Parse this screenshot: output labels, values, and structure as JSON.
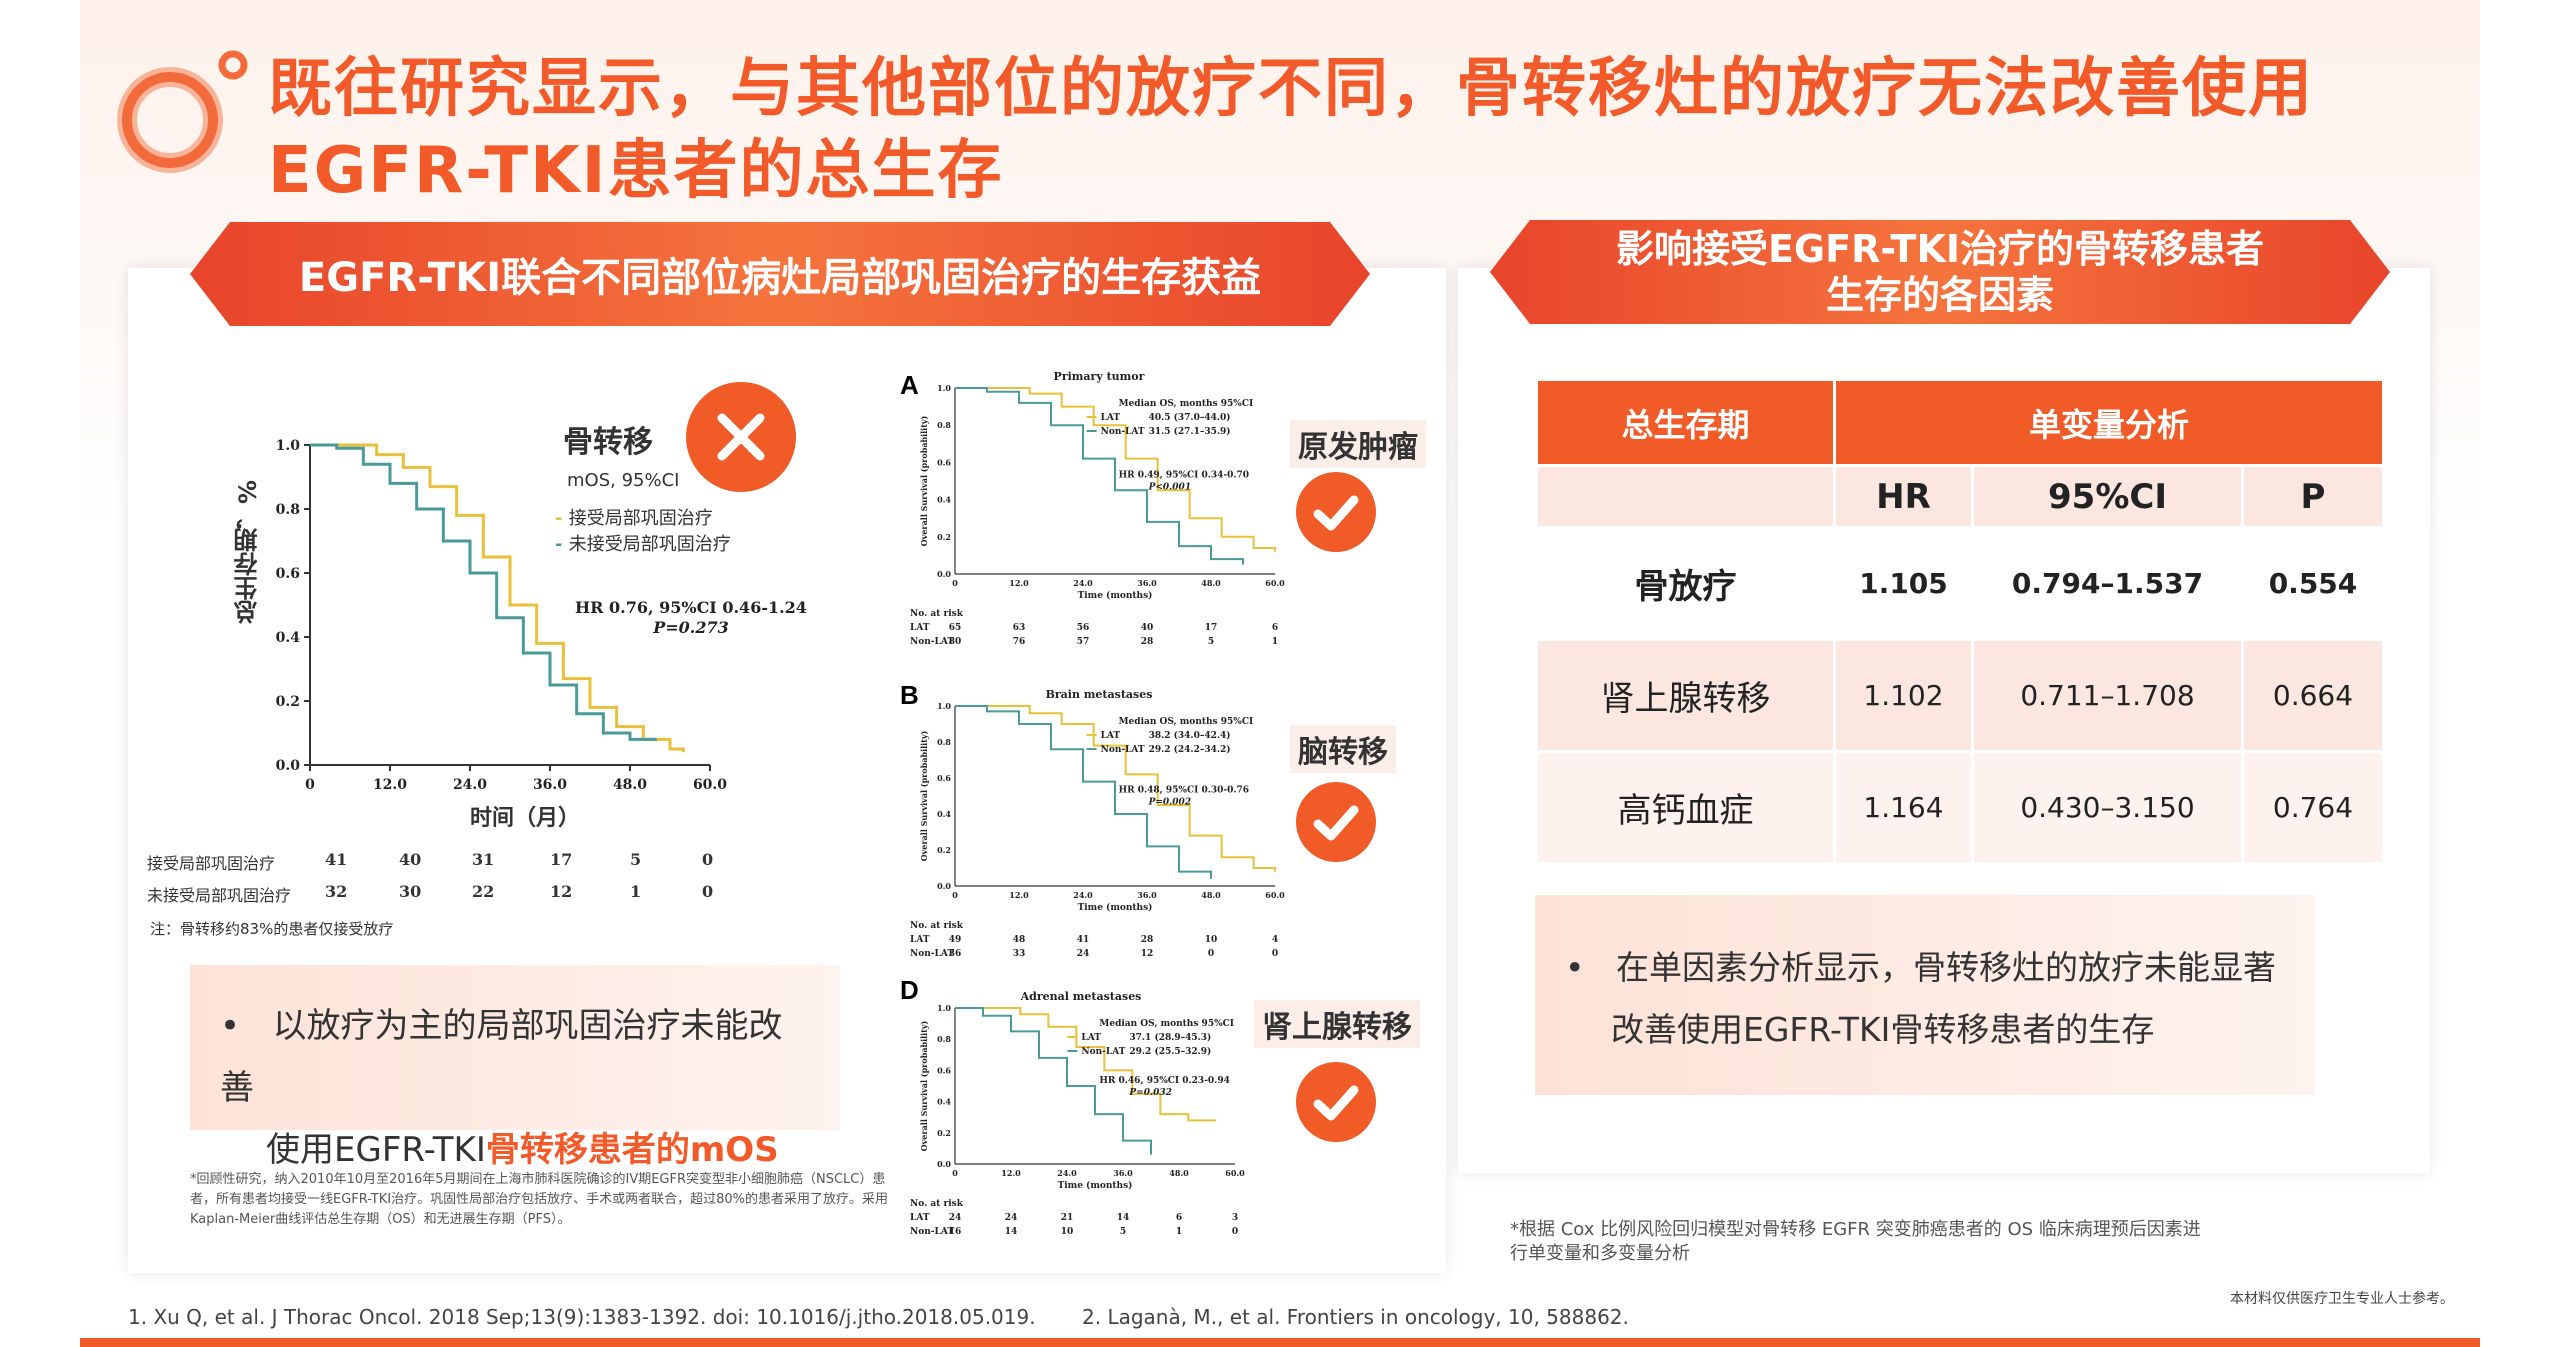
{
  "title": "既往研究显示，与其他部位的放疗不同，骨转移灶的放疗无法改善使用EGFR-TKI患者的总生存",
  "left_banner": "EGFR-TKI联合不同部位病灶局部巩固治疗的生存获益",
  "right_banner_line1": "影响接受EGFR-TKI治疗的骨转移患者",
  "right_banner_line2": "生存的各因素",
  "icons": {
    "logo": "orange-rings-logo",
    "cross": "x-mark-icon",
    "check": "check-mark-icon"
  },
  "colors": {
    "accent": "#f05b28",
    "lat": "#e8c03a",
    "non_lat": "#4a9a9a"
  },
  "left_chart": {
    "site": "骨转移",
    "mos_label": "mOS, 95%CI",
    "legend_lat": "接受局部巩固治疗",
    "legend_nonlat": "未接受局部巩固治疗",
    "hr_line1": "HR 0.76, 95%CI 0.46-1.24",
    "hr_line2": "P=0.273",
    "ylabel": "总生存期，%",
    "xlabel": "时间（月）",
    "risk_lat_label": "接受局部巩固治疗",
    "risk_nonlat_label": "未接受局部巩固治疗",
    "risk_lat": [
      "41",
      "40",
      "31",
      "17",
      "5",
      "0"
    ],
    "risk_nonlat": [
      "32",
      "30",
      "22",
      "12",
      "1",
      "0"
    ],
    "note": "注：骨转移约83%的患者仅接受放疗"
  },
  "chart_data": [
    {
      "type": "line",
      "subtitle": "骨转移",
      "xlabel": "时间（月）",
      "ylabel": "总生存期，%",
      "x_ticks": [
        "0",
        "12.0",
        "24.0",
        "36.0",
        "48.0",
        "60.0"
      ],
      "y_ticks": [
        "0.0",
        "0.2",
        "0.4",
        "0.6",
        "0.8",
        "1.0"
      ],
      "xlim": [
        0,
        60
      ],
      "ylim": [
        0,
        1
      ],
      "series": [
        {
          "name": "接受局部巩固治疗",
          "x": [
            0,
            6,
            10,
            14,
            18,
            22,
            26,
            30,
            34,
            38,
            42,
            46,
            50,
            54,
            56
          ],
          "y": [
            1.0,
            1.0,
            0.97,
            0.93,
            0.87,
            0.78,
            0.65,
            0.5,
            0.38,
            0.27,
            0.18,
            0.12,
            0.08,
            0.05,
            0.04
          ]
        },
        {
          "name": "未接受局部巩固治疗",
          "x": [
            0,
            4,
            8,
            12,
            16,
            20,
            24,
            28,
            32,
            36,
            40,
            44,
            48,
            52
          ],
          "y": [
            1.0,
            0.99,
            0.94,
            0.88,
            0.8,
            0.7,
            0.6,
            0.46,
            0.35,
            0.25,
            0.16,
            0.1,
            0.08,
            0.08
          ]
        }
      ]
    },
    {
      "type": "line",
      "title": "Primary tumor",
      "xlabel": "Time (months)",
      "ylabel": "Overall Survival (probability)",
      "x_ticks": [
        "0",
        "12.0",
        "24.0",
        "36.0",
        "48.0",
        "60.0"
      ],
      "y_ticks": [
        "0.0",
        "0.2",
        "0.4",
        "0.6",
        "0.8",
        "1.0"
      ],
      "xlim": [
        0,
        60
      ],
      "ylim": [
        0,
        1
      ],
      "series": [
        {
          "name": "LAT",
          "x": [
            0,
            8,
            14,
            20,
            26,
            32,
            38,
            44,
            50,
            56,
            60
          ],
          "y": [
            1.0,
            1.0,
            0.97,
            0.9,
            0.8,
            0.62,
            0.45,
            0.3,
            0.2,
            0.14,
            0.12
          ]
        },
        {
          "name": "Non-LAT",
          "x": [
            0,
            6,
            12,
            18,
            24,
            30,
            36,
            42,
            48,
            54
          ],
          "y": [
            1.0,
            0.98,
            0.92,
            0.8,
            0.62,
            0.45,
            0.28,
            0.15,
            0.08,
            0.05
          ]
        }
      ]
    },
    {
      "type": "line",
      "title": "Brain metastases",
      "xlabel": "Time (months)",
      "ylabel": "Overall Survival (probability)",
      "x_ticks": [
        "0",
        "12.0",
        "24.0",
        "36.0",
        "48.0",
        "60.0"
      ],
      "y_ticks": [
        "0.0",
        "0.2",
        "0.4",
        "0.6",
        "0.8",
        "1.0"
      ],
      "xlim": [
        0,
        60
      ],
      "ylim": [
        0,
        1
      ],
      "series": [
        {
          "name": "LAT",
          "x": [
            0,
            8,
            14,
            20,
            26,
            32,
            38,
            44,
            50,
            56,
            60
          ],
          "y": [
            1.0,
            1.0,
            0.96,
            0.9,
            0.78,
            0.62,
            0.45,
            0.28,
            0.16,
            0.1,
            0.08
          ]
        },
        {
          "name": "Non-LAT",
          "x": [
            0,
            6,
            12,
            18,
            24,
            30,
            36,
            42,
            48
          ],
          "y": [
            1.0,
            0.97,
            0.9,
            0.76,
            0.58,
            0.4,
            0.22,
            0.08,
            0.04
          ]
        }
      ]
    },
    {
      "type": "line",
      "title": "Adrenal metastases",
      "xlabel": "Time (months)",
      "ylabel": "Overall Survival (probability)",
      "x_ticks": [
        "0",
        "12.0",
        "24.0",
        "36.0",
        "48.0",
        "60.0"
      ],
      "y_ticks": [
        "0.0",
        "0.2",
        "0.4",
        "0.6",
        "0.8",
        "1.0"
      ],
      "xlim": [
        0,
        60
      ],
      "ylim": [
        0,
        1
      ],
      "series": [
        {
          "name": "LAT",
          "x": [
            0,
            8,
            14,
            20,
            26,
            32,
            38,
            44,
            50,
            56
          ],
          "y": [
            1.0,
            1.0,
            0.96,
            0.88,
            0.75,
            0.6,
            0.45,
            0.32,
            0.28,
            0.28
          ]
        },
        {
          "name": "Non-LAT",
          "x": [
            0,
            6,
            12,
            18,
            24,
            30,
            36,
            42
          ],
          "y": [
            1.0,
            0.95,
            0.85,
            0.68,
            0.5,
            0.32,
            0.15,
            0.06
          ]
        }
      ]
    }
  ],
  "mini_charts": [
    {
      "letter": "A",
      "title": "Primary tumor",
      "site": "原发肿瘤",
      "median_header": "Median OS, months 95%CI",
      "lat_text": "40.5 (37.0–44.0)",
      "nonlat_text": "31.5 (27.1–35.9)",
      "hr_line1": "HR 0.49, 95%CI 0.34-0.70",
      "hr_line2": "P<0.001",
      "risk_lat": [
        "65",
        "63",
        "56",
        "40",
        "17",
        "6"
      ],
      "risk_nonlat": [
        "80",
        "76",
        "57",
        "28",
        "5",
        "1"
      ]
    },
    {
      "letter": "B",
      "title": "Brain metastases",
      "site": "脑转移",
      "median_header": "Median OS, months 95%CI",
      "lat_text": "38.2 (34.0–42.4)",
      "nonlat_text": "29.2 (24.2–34.2)",
      "hr_line1": "HR 0.48, 95%CI 0.30-0.76",
      "hr_line2": "P=0.002",
      "risk_lat": [
        "49",
        "48",
        "41",
        "28",
        "10",
        "4"
      ],
      "risk_nonlat": [
        "36",
        "33",
        "24",
        "12",
        "0",
        "0"
      ]
    },
    {
      "letter": "D",
      "title": "Adrenal metastases",
      "site": "肾上腺转移",
      "median_header": "Median OS, months 95%CI",
      "lat_text": "37.1 (28.9–45.3)",
      "nonlat_text": "29.2 (25.5–32.9)",
      "hr_line1": "HR 0.46, 95%CI 0.23-0.94",
      "hr_line2": "P=0.032",
      "risk_lat": [
        "24",
        "24",
        "21",
        "14",
        "6",
        "3"
      ],
      "risk_nonlat": [
        "16",
        "14",
        "10",
        "5",
        "1",
        "0"
      ]
    }
  ],
  "mini_common": {
    "lat": "LAT",
    "nonlat": "Non-LAT",
    "no_at_risk": "No. at risk",
    "xlabel": "Time (months)",
    "ylabel": "Overall Survival (probability)"
  },
  "left_bullet_line1": "以放疗为主的局部巩固治疗未能改善",
  "left_bullet_line2_a": "使用EGFR-TKI",
  "left_bullet_line2_b": "骨转移患者的mOS",
  "left_footnote": "*回顾性研究，纳入2010年10月至2016年5月期间在上海市肺科医院确诊的IV期EGFR突变型非小细胞肺癌（NSCLC）患者，所有患者均接受一线EGFR-TKI治疗。巩固性局部治疗包括放疗、手术或两者联合，超过80%的患者采用了放疗。采用Kaplan-Meier曲线评估总生存期（OS）和无进展生存期（PFS）。",
  "table": {
    "col1": "总生存期",
    "col2": "单变量分析",
    "sub": [
      "HR",
      "95%CI",
      "P"
    ],
    "rows": [
      {
        "name": "骨放疗",
        "hr": "1.105",
        "ci": "0.794–1.537",
        "p": "0.554"
      },
      {
        "name": "肾上腺转移",
        "hr": "1.102",
        "ci": "0.711–1.708",
        "p": "0.664"
      },
      {
        "name": "高钙血症",
        "hr": "1.164",
        "ci": "0.430–3.150",
        "p": "0.764"
      }
    ]
  },
  "right_bullet_line1": "在单因素分析显示，骨转移灶的放疗未能显著",
  "right_bullet_line2": "改善使用EGFR-TKI骨转移患者的生存",
  "right_note": "*根据 Cox 比例风险回归模型对骨转移 EGFR 突变肺癌患者的 OS 临床病理预后因素进行单变量和多变量分析",
  "ref1": "1.    Xu Q, et al. J Thorac Oncol. 2018 Sep;13(9):1383-1392. doi: 10.1016/j.jtho.2018.05.019.",
  "ref2": "2. Laganà, M., et al. Frontiers in oncology, 10, 588862.",
  "disclaimer": "本材料仅供医疗卫生专业人士参考。"
}
